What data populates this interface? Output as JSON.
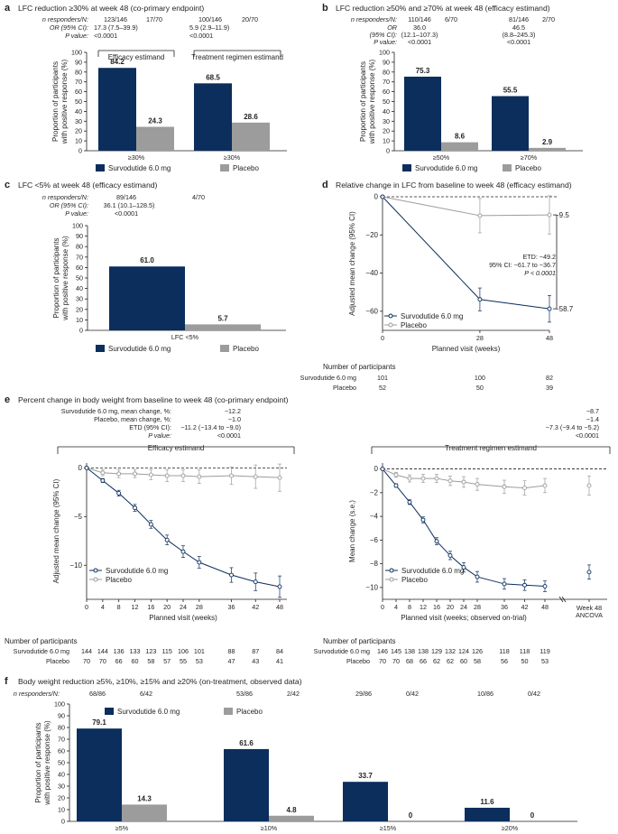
{
  "colors": {
    "drug": "#0b2e5c",
    "placebo": "#9c9c9c",
    "text": "#231f20"
  },
  "legend": {
    "drug": "Survodutide 6.0 mg",
    "placebo": "Placebo"
  },
  "a": {
    "letter": "a",
    "title": "LFC reduction ≥30% at week 48 (co-primary endpoint)",
    "row_labels": [
      "n responders/N:",
      "OR (95% CI):",
      "P value:"
    ],
    "stats": [
      [
        "123/146",
        "17/70"
      ],
      [
        "17.3 (7.5–39.9)",
        ""
      ],
      [
        "<0.0001",
        ""
      ],
      [
        "100/146",
        "20/70"
      ],
      [
        "5.9 (2.9–11.9)",
        ""
      ],
      [
        "<0.0001",
        ""
      ]
    ],
    "group_labels": [
      "Efficacy estimand",
      "Treatment regimen estimand"
    ]
  },
  "b": {
    "letter": "b",
    "title": "LFC reduction ≥50% and ≥70% at week 48 (efficacy estimand)",
    "row_labels": [
      "n responders/N:",
      "OR",
      "(95% CI):",
      "P value:"
    ],
    "stats": [
      [
        "110/146",
        "6/70"
      ],
      [
        "36.0",
        ""
      ],
      [
        "(12.1–107.3)",
        ""
      ],
      [
        "<0.0001",
        ""
      ],
      [
        "81/146",
        "2/70"
      ],
      [
        "46.5",
        ""
      ],
      [
        "(8.8–245.3)",
        ""
      ],
      [
        "<0.0001",
        ""
      ]
    ]
  },
  "c": {
    "letter": "c",
    "title": "LFC <5% at week 48 (efficacy estimand)",
    "row_labels": [
      "n responders/N:",
      "OR (95% CI):",
      "P value:"
    ],
    "stats": [
      [
        "89/146",
        "4/70"
      ],
      [
        "36.1 (10.1–128.5)",
        ""
      ],
      [
        "<0.0001",
        ""
      ]
    ]
  },
  "d": {
    "letter": "d",
    "title": "Relative change in LFC from baseline to week 48 (efficacy estimand)",
    "etd_lines": [
      "ETD: −49.2",
      "95% CI: −61.7 to −36.7",
      "P < 0.0001"
    ],
    "participants_title": "Number of participants",
    "participants": [
      {
        "label": "Survodutide 6.0 mg",
        "values": [
          "101",
          "100",
          "82"
        ]
      },
      {
        "label": "Placebo",
        "values": [
          "52",
          "50",
          "39"
        ]
      }
    ]
  },
  "e": {
    "letter": "e",
    "title": "Percent change in body weight from baseline to week 48 (co-primary endpoint)",
    "summary_labels": [
      "Survodutide 6.0 mg, mean change, %:",
      "Placebo, mean change, %:",
      "ETD (95% CI):",
      "P value:"
    ],
    "summary_efficacy": [
      "−12.2",
      "−1.0",
      "−11.2 (−13.4 to −9.0)",
      "<0.0001"
    ],
    "summary_regimen": [
      "−8.7",
      "−1.4",
      "−7.3 (−9.4 to −5.2)",
      "<0.0001"
    ],
    "group_labels": [
      "Efficacy estimand",
      "Treatment regimen estimand"
    ],
    "participants_title": "Number of participants",
    "participants_left": [
      {
        "label": "Survodutide 6.0 mg",
        "values": [
          "144",
          "144",
          "136",
          "133",
          "123",
          "115",
          "106",
          "101",
          "88",
          "87",
          "84"
        ]
      },
      {
        "label": "Placebo",
        "values": [
          "70",
          "70",
          "66",
          "60",
          "58",
          "57",
          "55",
          "53",
          "47",
          "43",
          "41"
        ]
      }
    ],
    "participants_right": [
      {
        "label": "Survodutide 6.0 mg",
        "values": [
          "146",
          "145",
          "138",
          "138",
          "129",
          "132",
          "124",
          "126",
          "118",
          "118",
          "119"
        ]
      },
      {
        "label": "Placebo",
        "values": [
          "70",
          "70",
          "68",
          "66",
          "62",
          "62",
          "60",
          "58",
          "56",
          "50",
          "53"
        ]
      }
    ]
  },
  "f": {
    "letter": "f",
    "title": "Body weight reduction ≥5%, ≥10%, ≥15% and ≥20% (on-treatment, observed data)",
    "row_label": "n responders/N:",
    "responders": [
      [
        "68/86",
        "6/42"
      ],
      [
        "53/86",
        "2/42"
      ],
      [
        "29/86",
        "0/42"
      ],
      [
        "10/86",
        "0/42"
      ]
    ]
  },
  "chart_data": [
    {
      "panel": "a",
      "type": "bar",
      "categories": [
        "≥30%",
        "≥30%"
      ],
      "ylabel": "Proportion of participants with positive response (%)",
      "ylim": [
        0,
        100
      ],
      "yticks": [
        0,
        10,
        20,
        30,
        40,
        50,
        60,
        70,
        80,
        90,
        100
      ],
      "series": [
        {
          "name": "Survodutide 6.0 mg",
          "values": [
            84.2,
            68.5
          ],
          "labels": [
            "84.2",
            "68.5"
          ]
        },
        {
          "name": "Placebo",
          "values": [
            24.3,
            28.6
          ],
          "labels": [
            "24.3",
            "28.6"
          ]
        }
      ]
    },
    {
      "panel": "b",
      "type": "bar",
      "categories": [
        "≥50%",
        "≥70%"
      ],
      "ylabel": "Proportion of participants with positive response (%)",
      "ylim": [
        0,
        100
      ],
      "yticks": [
        0,
        10,
        20,
        30,
        40,
        50,
        60,
        70,
        80,
        90,
        100
      ],
      "series": [
        {
          "name": "Survodutide 6.0 mg",
          "values": [
            75.3,
            55.5
          ],
          "labels": [
            "75.3",
            "55.5"
          ]
        },
        {
          "name": "Placebo",
          "values": [
            8.6,
            2.9
          ],
          "labels": [
            "8.6",
            "2.9"
          ]
        }
      ]
    },
    {
      "panel": "c",
      "type": "bar",
      "categories": [
        "LFC <5%"
      ],
      "ylabel": "Proportion of participants with positive response (%)",
      "ylim": [
        0,
        100
      ],
      "yticks": [
        0,
        10,
        20,
        30,
        40,
        50,
        60,
        70,
        80,
        90,
        100
      ],
      "series": [
        {
          "name": "Survodutide 6.0 mg",
          "values": [
            61.0
          ],
          "labels": [
            "61.0"
          ]
        },
        {
          "name": "Placebo",
          "values": [
            5.7
          ],
          "labels": [
            "5.7"
          ]
        }
      ]
    },
    {
      "panel": "d",
      "type": "line",
      "x": [
        0,
        28,
        48
      ],
      "xticks": [
        0,
        28,
        48
      ],
      "xlabel": "Planned visit (weeks)",
      "ylabel": "Adjusted mean change (95% CI)",
      "ylim": [
        -70,
        0
      ],
      "yticks": [
        0,
        -20,
        -40,
        -60
      ],
      "series": [
        {
          "name": "Survodutide 6.0 mg",
          "values": [
            0,
            -53.8,
            -58.7
          ],
          "err": [
            0,
            6,
            7
          ],
          "labels": [
            "",
            "",
            "−58.7"
          ]
        },
        {
          "name": "Placebo",
          "values": [
            0,
            -9.9,
            -9.5
          ],
          "err": [
            0,
            9,
            10
          ],
          "labels": [
            "",
            "",
            "−9.5"
          ]
        }
      ]
    },
    {
      "panel": "e-left",
      "type": "line",
      "x": [
        0,
        4,
        8,
        12,
        16,
        20,
        24,
        28,
        36,
        42,
        48
      ],
      "xlabel": "Planned visit (weeks)",
      "ylabel": "Adjusted mean change (95% CI)",
      "ylim": [
        -13.5,
        0.5
      ],
      "yticks": [
        0,
        -5,
        -10
      ],
      "series": [
        {
          "name": "Survodutide 6.0 mg",
          "values": [
            0,
            -1.3,
            -2.6,
            -4.1,
            -5.8,
            -7.4,
            -8.6,
            -9.7,
            -11.0,
            -11.7,
            -12.2
          ],
          "err": [
            0,
            0.2,
            0.3,
            0.35,
            0.4,
            0.5,
            0.6,
            0.6,
            0.75,
            0.9,
            1.1
          ]
        },
        {
          "name": "Placebo",
          "values": [
            0,
            -0.5,
            -0.6,
            -0.6,
            -0.7,
            -0.8,
            -0.8,
            -0.9,
            -0.8,
            -0.9,
            -1.0
          ],
          "err": [
            0,
            0.3,
            0.4,
            0.4,
            0.5,
            0.6,
            0.6,
            0.7,
            0.9,
            1.2,
            1.4
          ]
        }
      ]
    },
    {
      "panel": "e-right",
      "type": "line",
      "x": [
        0,
        4,
        8,
        12,
        16,
        20,
        24,
        28,
        36,
        42,
        48
      ],
      "xlabel": "Planned visit (weeks; observed on-trial)",
      "ylabel": "Mean change (s.e.)",
      "ylim": [
        -11,
        0.5
      ],
      "yticks": [
        0,
        -2,
        -4,
        -6,
        -8,
        -10
      ],
      "extra_x_label": [
        "Week 48",
        "ANCOVA"
      ],
      "series": [
        {
          "name": "Survodutide 6.0 mg",
          "values": [
            0,
            -1.4,
            -2.8,
            -4.3,
            -6.1,
            -7.3,
            -8.3,
            -9.1,
            -9.7,
            -9.8,
            -9.9
          ],
          "err": [
            0,
            0.15,
            0.2,
            0.25,
            0.3,
            0.35,
            0.4,
            0.45,
            0.45,
            0.45,
            0.45
          ],
          "extra": -8.7,
          "extra_err": 0.6
        },
        {
          "name": "Placebo",
          "values": [
            0,
            -0.5,
            -0.8,
            -0.8,
            -0.8,
            -1.0,
            -1.1,
            -1.3,
            -1.5,
            -1.6,
            -1.4
          ],
          "err": [
            0,
            0.2,
            0.3,
            0.35,
            0.35,
            0.4,
            0.45,
            0.5,
            0.55,
            0.6,
            0.6
          ],
          "extra": -1.4,
          "extra_err": 0.8
        }
      ]
    },
    {
      "panel": "f",
      "type": "bar",
      "categories": [
        "≥5%",
        "≥10%",
        "≥15%",
        "≥20%"
      ],
      "ylabel": "Proportion of participants with positive response (%)",
      "ylim": [
        0,
        100
      ],
      "yticks": [
        0,
        10,
        20,
        30,
        40,
        50,
        60,
        70,
        80,
        90,
        100
      ],
      "series": [
        {
          "name": "Survodutide 6.0 mg",
          "values": [
            79.1,
            61.6,
            33.7,
            11.6
          ],
          "labels": [
            "79.1",
            "61.6",
            "33.7",
            "11.6"
          ]
        },
        {
          "name": "Placebo",
          "values": [
            14.3,
            4.8,
            0,
            0
          ],
          "labels": [
            "14.3",
            "4.8",
            "0",
            "0"
          ]
        }
      ]
    }
  ]
}
